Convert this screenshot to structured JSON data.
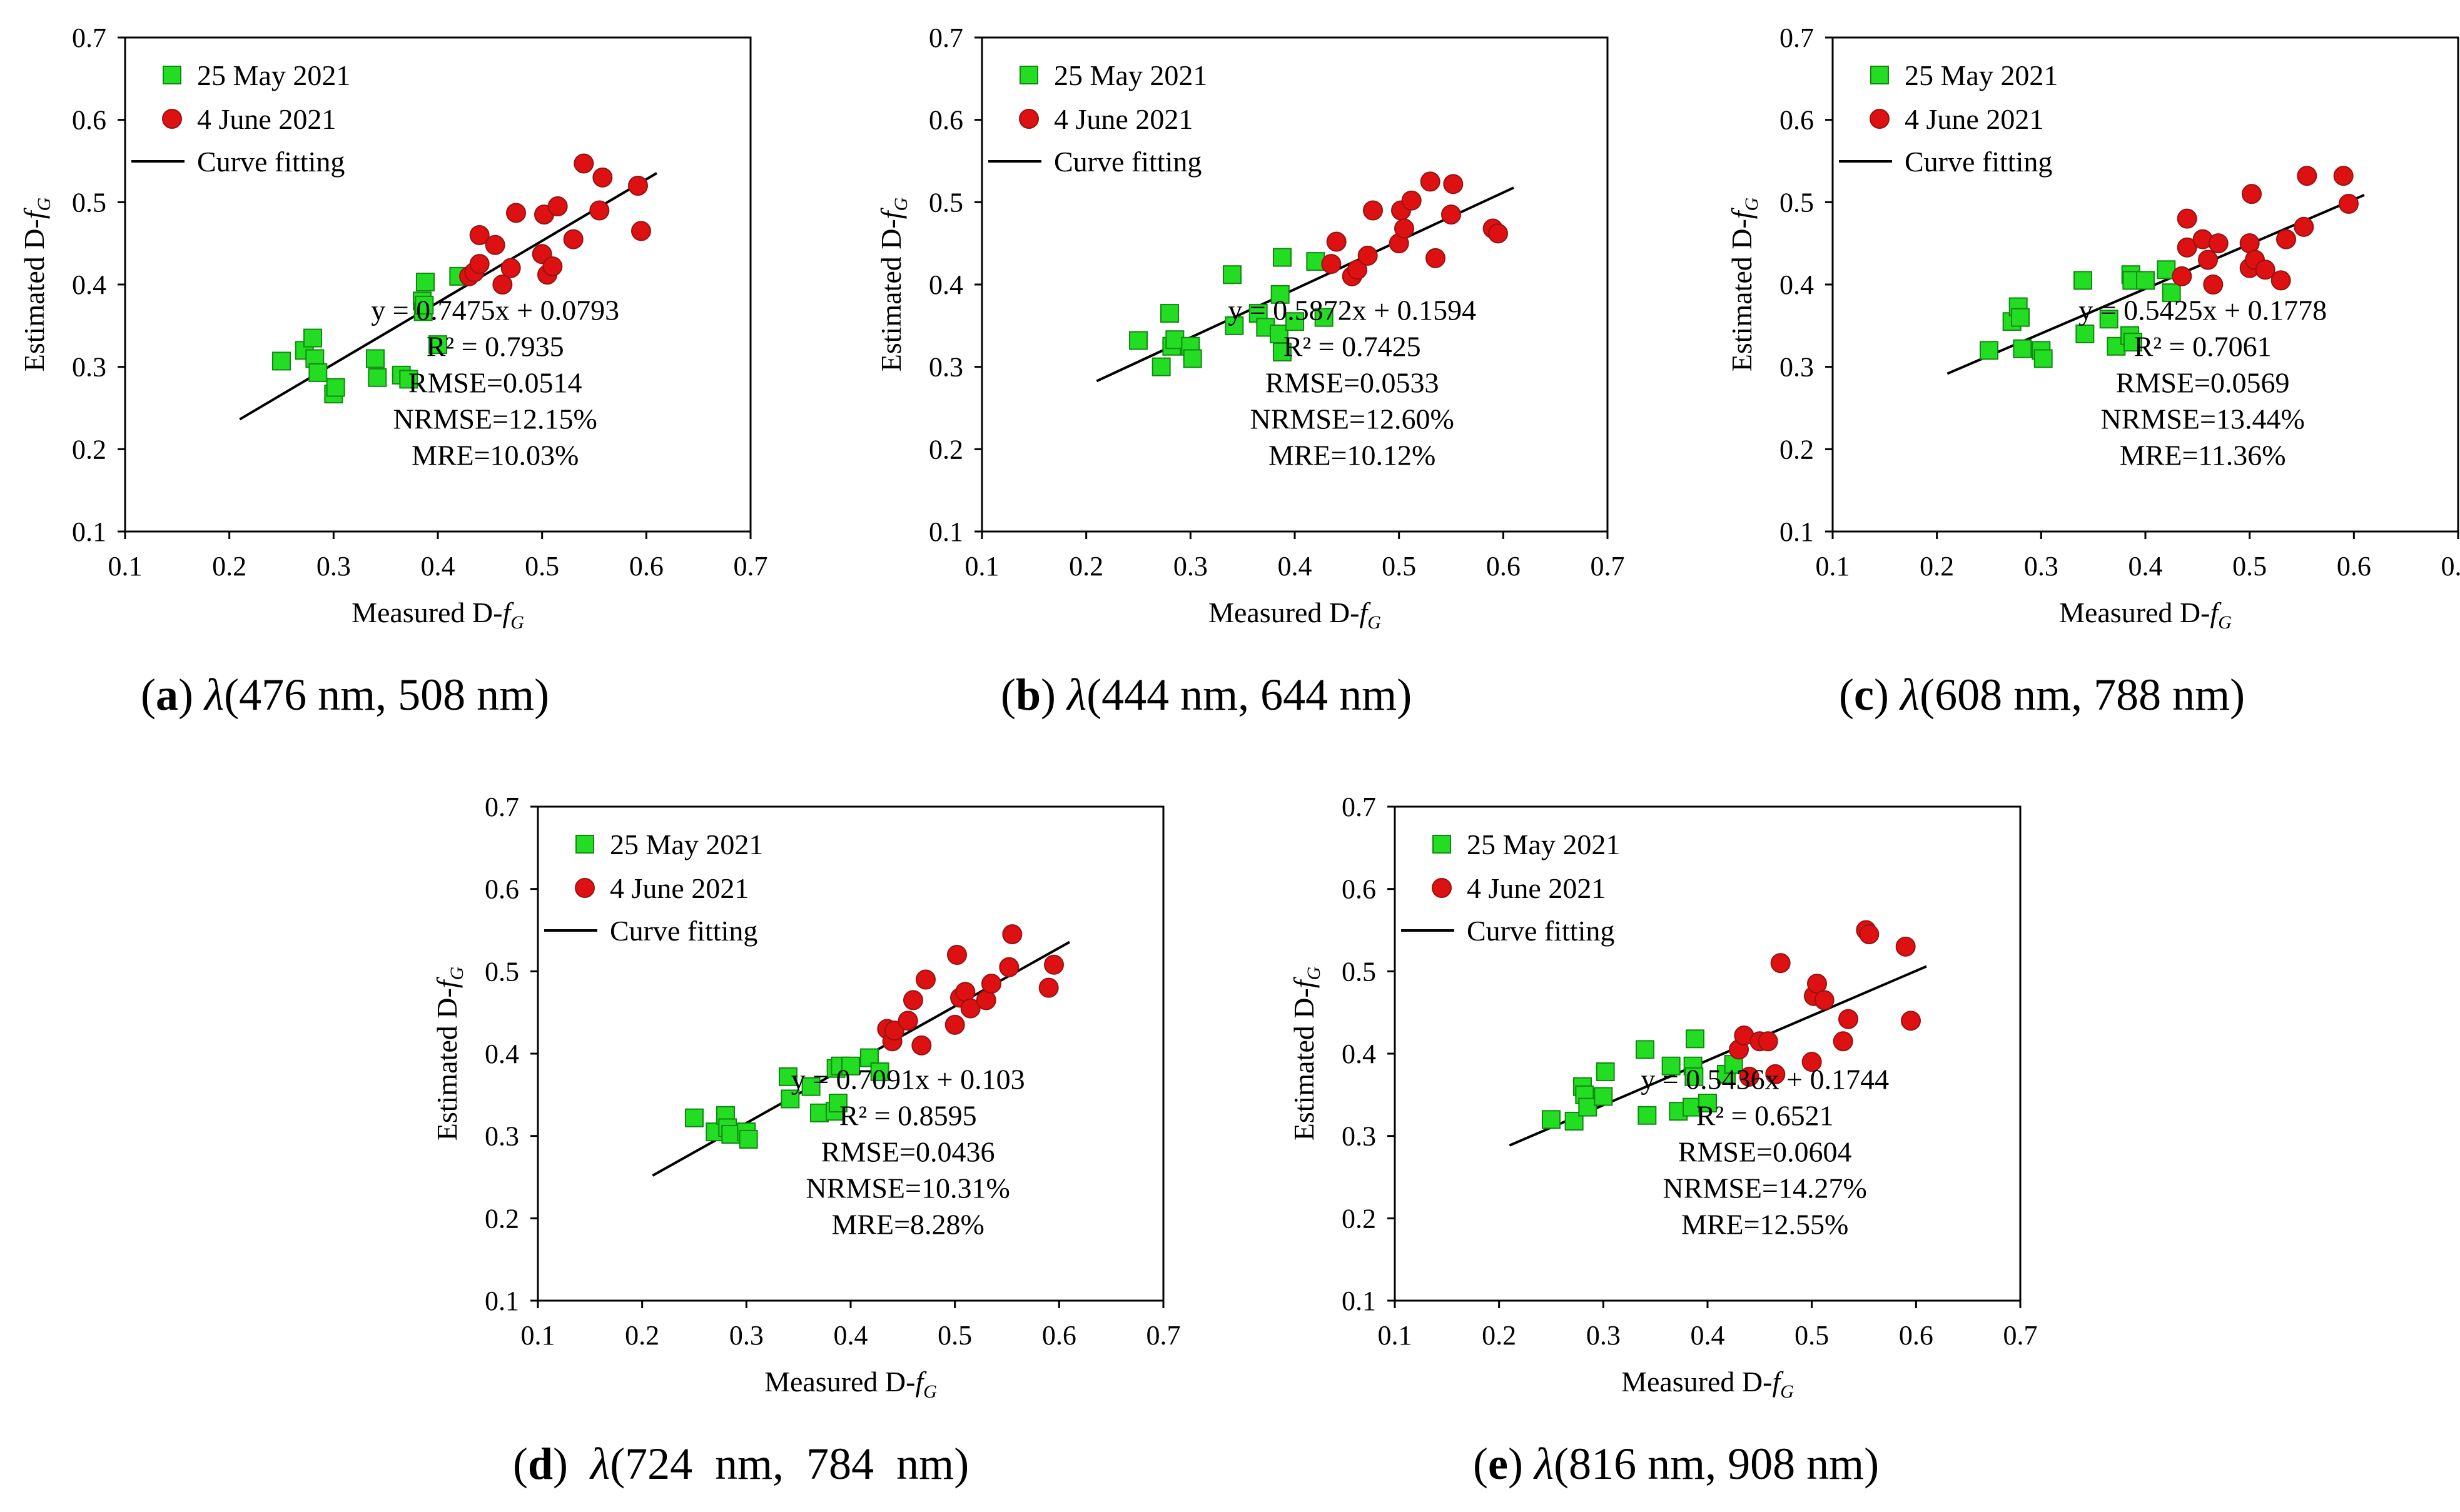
{
  "figure": {
    "axis_ticks": [
      "0.1",
      "0.2",
      "0.3",
      "0.4",
      "0.5",
      "0.6",
      "0.7"
    ]
  },
  "chart_data": [
    {
      "type": "scatter",
      "panel_letter": "a",
      "caption": {
        "lambda": "λ",
        "text": "(476 nm, 508 nm)"
      },
      "xlabel": "Measured D-fG",
      "ylabel": "Estimated D-fG",
      "xlim": [
        0.1,
        0.7
      ],
      "ylim": [
        0.1,
        0.7
      ],
      "legend": [
        "25 May 2021",
        "4 June 2021",
        "Curve fitting"
      ],
      "fit": {
        "slope": 0.7475,
        "intercept": 0.0793,
        "x_range": [
          0.21,
          0.61
        ]
      },
      "stats": [
        "y = 0.7475x + 0.0793",
        "R² = 0.7935",
        "RMSE=0.0514",
        "NRMSE=12.15%",
        "MRE=10.03%"
      ],
      "series": [
        {
          "name": "25 May 2021",
          "color": "#22dd22",
          "marker": "square",
          "points": [
            [
              0.25,
              0.307
            ],
            [
              0.272,
              0.32
            ],
            [
              0.28,
              0.335
            ],
            [
              0.282,
              0.31
            ],
            [
              0.285,
              0.293
            ],
            [
              0.3,
              0.267
            ],
            [
              0.302,
              0.275
            ],
            [
              0.34,
              0.31
            ],
            [
              0.342,
              0.287
            ],
            [
              0.365,
              0.29
            ],
            [
              0.372,
              0.285
            ],
            [
              0.385,
              0.38
            ],
            [
              0.386,
              0.367
            ],
            [
              0.387,
              0.375
            ],
            [
              0.388,
              0.403
            ],
            [
              0.4,
              0.327
            ],
            [
              0.42,
              0.41
            ]
          ]
        },
        {
          "name": "4 June 2021",
          "color": "#dd1111",
          "marker": "circle",
          "points": [
            [
              0.43,
              0.41
            ],
            [
              0.435,
              0.415
            ],
            [
              0.44,
              0.46
            ],
            [
              0.44,
              0.425
            ],
            [
              0.455,
              0.448
            ],
            [
              0.462,
              0.4
            ],
            [
              0.47,
              0.42
            ],
            [
              0.475,
              0.487
            ],
            [
              0.5,
              0.437
            ],
            [
              0.502,
              0.485
            ],
            [
              0.505,
              0.412
            ],
            [
              0.51,
              0.422
            ],
            [
              0.515,
              0.495
            ],
            [
              0.53,
              0.455
            ],
            [
              0.54,
              0.547
            ],
            [
              0.555,
              0.49
            ],
            [
              0.558,
              0.53
            ],
            [
              0.592,
              0.52
            ],
            [
              0.595,
              0.465
            ]
          ]
        }
      ]
    },
    {
      "type": "scatter",
      "panel_letter": "b",
      "caption": {
        "lambda": "λ",
        "text": "(444 nm, 644 nm)"
      },
      "xlabel": "Measured D-fG",
      "ylabel": "Estimated D-fG",
      "xlim": [
        0.1,
        0.7
      ],
      "ylim": [
        0.1,
        0.7
      ],
      "legend": [
        "25 May 2021",
        "4 June 2021",
        "Curve fitting"
      ],
      "fit": {
        "slope": 0.5872,
        "intercept": 0.1594,
        "x_range": [
          0.21,
          0.61
        ]
      },
      "stats": [
        "y = 0.5872x + 0.1594",
        "R² = 0.7425",
        "RMSE=0.0533",
        "NRMSE=12.60%",
        "MRE=10.12%"
      ],
      "series": [
        {
          "name": "25 May 2021",
          "color": "#22dd22",
          "marker": "square",
          "points": [
            [
              0.25,
              0.332
            ],
            [
              0.272,
              0.3
            ],
            [
              0.28,
              0.365
            ],
            [
              0.282,
              0.325
            ],
            [
              0.285,
              0.333
            ],
            [
              0.3,
              0.325
            ],
            [
              0.302,
              0.31
            ],
            [
              0.34,
              0.412
            ],
            [
              0.342,
              0.35
            ],
            [
              0.365,
              0.365
            ],
            [
              0.372,
              0.348
            ],
            [
              0.385,
              0.34
            ],
            [
              0.386,
              0.388
            ],
            [
              0.388,
              0.433
            ],
            [
              0.388,
              0.318
            ],
            [
              0.4,
              0.355
            ],
            [
              0.42,
              0.428
            ],
            [
              0.428,
              0.36
            ]
          ]
        },
        {
          "name": "4 June 2021",
          "color": "#dd1111",
          "marker": "circle",
          "points": [
            [
              0.435,
              0.425
            ],
            [
              0.44,
              0.452
            ],
            [
              0.455,
              0.41
            ],
            [
              0.46,
              0.418
            ],
            [
              0.47,
              0.435
            ],
            [
              0.475,
              0.49
            ],
            [
              0.5,
              0.45
            ],
            [
              0.502,
              0.49
            ],
            [
              0.505,
              0.468
            ],
            [
              0.512,
              0.502
            ],
            [
              0.53,
              0.525
            ],
            [
              0.535,
              0.432
            ],
            [
              0.55,
              0.485
            ],
            [
              0.552,
              0.522
            ],
            [
              0.59,
              0.468
            ],
            [
              0.595,
              0.462
            ]
          ]
        }
      ]
    },
    {
      "type": "scatter",
      "panel_letter": "c",
      "caption": {
        "lambda": "λ",
        "text": "(608 nm, 788 nm)"
      },
      "xlabel": "Measured D-fG",
      "ylabel": "Estimated D-fG",
      "xlim": [
        0.1,
        0.7
      ],
      "ylim": [
        0.1,
        0.7
      ],
      "legend": [
        "25 May 2021",
        "4 June 2021",
        "Curve fitting"
      ],
      "fit": {
        "slope": 0.5425,
        "intercept": 0.1778,
        "x_range": [
          0.21,
          0.61
        ]
      },
      "stats": [
        "y = 0.5425x + 0.1778",
        "R² = 0.7061",
        "RMSE=0.0569",
        "NRMSE=13.44%",
        "MRE=11.36%"
      ],
      "series": [
        {
          "name": "25 May 2021",
          "color": "#22dd22",
          "marker": "square",
          "points": [
            [
              0.25,
              0.32
            ],
            [
              0.272,
              0.355
            ],
            [
              0.278,
              0.373
            ],
            [
              0.28,
              0.36
            ],
            [
              0.282,
              0.322
            ],
            [
              0.3,
              0.32
            ],
            [
              0.302,
              0.31
            ],
            [
              0.34,
              0.405
            ],
            [
              0.342,
              0.34
            ],
            [
              0.365,
              0.358
            ],
            [
              0.372,
              0.325
            ],
            [
              0.385,
              0.338
            ],
            [
              0.386,
              0.412
            ],
            [
              0.387,
              0.405
            ],
            [
              0.388,
              0.33
            ],
            [
              0.4,
              0.405
            ],
            [
              0.42,
              0.418
            ],
            [
              0.425,
              0.39
            ]
          ]
        },
        {
          "name": "4 June 2021",
          "color": "#dd1111",
          "marker": "circle",
          "points": [
            [
              0.435,
              0.41
            ],
            [
              0.44,
              0.445
            ],
            [
              0.44,
              0.48
            ],
            [
              0.455,
              0.455
            ],
            [
              0.46,
              0.43
            ],
            [
              0.465,
              0.4
            ],
            [
              0.47,
              0.45
            ],
            [
              0.5,
              0.45
            ],
            [
              0.5,
              0.42
            ],
            [
              0.502,
              0.51
            ],
            [
              0.505,
              0.43
            ],
            [
              0.515,
              0.418
            ],
            [
              0.53,
              0.405
            ],
            [
              0.535,
              0.455
            ],
            [
              0.552,
              0.47
            ],
            [
              0.555,
              0.532
            ],
            [
              0.59,
              0.532
            ],
            [
              0.595,
              0.498
            ]
          ]
        }
      ]
    },
    {
      "type": "scatter",
      "panel_letter": "d",
      "caption": {
        "lambda": "λ",
        "text": "(724  nm,  784  nm)"
      },
      "xlabel": "Measured D-fG",
      "ylabel": "Estimated D-fG",
      "xlim": [
        0.1,
        0.7
      ],
      "ylim": [
        0.1,
        0.7
      ],
      "legend": [
        "25 May 2021",
        "4 June 2021",
        "Curve fitting"
      ],
      "fit": {
        "slope": 0.7091,
        "intercept": 0.103,
        "x_range": [
          0.21,
          0.61
        ]
      },
      "stats": [
        "y = 0.7091x + 0.103",
        "R² = 0.8595",
        "RMSE=0.0436",
        "NRMSE=10.31%",
        "MRE=8.28%"
      ],
      "series": [
        {
          "name": "25 May 2021",
          "color": "#22dd22",
          "marker": "square",
          "points": [
            [
              0.25,
              0.322
            ],
            [
              0.27,
              0.305
            ],
            [
              0.28,
              0.325
            ],
            [
              0.282,
              0.31
            ],
            [
              0.285,
              0.302
            ],
            [
              0.3,
              0.305
            ],
            [
              0.302,
              0.296
            ],
            [
              0.34,
              0.372
            ],
            [
              0.342,
              0.345
            ],
            [
              0.362,
              0.36
            ],
            [
              0.37,
              0.328
            ],
            [
              0.385,
              0.33
            ],
            [
              0.386,
              0.382
            ],
            [
              0.388,
              0.34
            ],
            [
              0.39,
              0.385
            ],
            [
              0.4,
              0.385
            ],
            [
              0.418,
              0.395
            ],
            [
              0.428,
              0.378
            ]
          ]
        },
        {
          "name": "4 June 2021",
          "color": "#dd1111",
          "marker": "circle",
          "points": [
            [
              0.435,
              0.43
            ],
            [
              0.44,
              0.415
            ],
            [
              0.442,
              0.428
            ],
            [
              0.455,
              0.44
            ],
            [
              0.46,
              0.465
            ],
            [
              0.468,
              0.41
            ],
            [
              0.472,
              0.49
            ],
            [
              0.5,
              0.435
            ],
            [
              0.502,
              0.52
            ],
            [
              0.505,
              0.468
            ],
            [
              0.51,
              0.475
            ],
            [
              0.515,
              0.455
            ],
            [
              0.53,
              0.465
            ],
            [
              0.535,
              0.485
            ],
            [
              0.552,
              0.505
            ],
            [
              0.555,
              0.545
            ],
            [
              0.59,
              0.48
            ],
            [
              0.595,
              0.508
            ]
          ]
        }
      ]
    },
    {
      "type": "scatter",
      "panel_letter": "e",
      "caption": {
        "lambda": "λ",
        "text": "(816 nm, 908 nm)"
      },
      "xlabel": "Measured D-fG",
      "ylabel": "Estimated D-fG",
      "xlim": [
        0.1,
        0.7
      ],
      "ylim": [
        0.1,
        0.7
      ],
      "legend": [
        "25 May 2021",
        "4 June 2021",
        "Curve fitting"
      ],
      "fit": {
        "slope": 0.5436,
        "intercept": 0.1744,
        "x_range": [
          0.21,
          0.61
        ]
      },
      "stats": [
        "y = 0.5436x + 0.1744",
        "R² = 0.6521",
        "RMSE=0.0604",
        "NRMSE=14.27%",
        "MRE=12.55%"
      ],
      "series": [
        {
          "name": "25 May 2021",
          "color": "#22dd22",
          "marker": "square",
          "points": [
            [
              0.25,
              0.32
            ],
            [
              0.272,
              0.318
            ],
            [
              0.28,
              0.36
            ],
            [
              0.282,
              0.35
            ],
            [
              0.285,
              0.335
            ],
            [
              0.3,
              0.348
            ],
            [
              0.302,
              0.378
            ],
            [
              0.34,
              0.405
            ],
            [
              0.342,
              0.325
            ],
            [
              0.365,
              0.385
            ],
            [
              0.372,
              0.33
            ],
            [
              0.385,
              0.335
            ],
            [
              0.386,
              0.385
            ],
            [
              0.387,
              0.372
            ],
            [
              0.388,
              0.418
            ],
            [
              0.4,
              0.34
            ],
            [
              0.418,
              0.375
            ],
            [
              0.425,
              0.387
            ]
          ]
        },
        {
          "name": "4 June 2021",
          "color": "#dd1111",
          "marker": "circle",
          "points": [
            [
              0.43,
              0.405
            ],
            [
              0.435,
              0.422
            ],
            [
              0.44,
              0.372
            ],
            [
              0.45,
              0.415
            ],
            [
              0.458,
              0.415
            ],
            [
              0.465,
              0.375
            ],
            [
              0.47,
              0.51
            ],
            [
              0.5,
              0.39
            ],
            [
              0.502,
              0.47
            ],
            [
              0.505,
              0.485
            ],
            [
              0.512,
              0.465
            ],
            [
              0.53,
              0.415
            ],
            [
              0.535,
              0.442
            ],
            [
              0.552,
              0.55
            ],
            [
              0.555,
              0.545
            ],
            [
              0.59,
              0.53
            ],
            [
              0.595,
              0.44
            ]
          ]
        }
      ]
    }
  ]
}
